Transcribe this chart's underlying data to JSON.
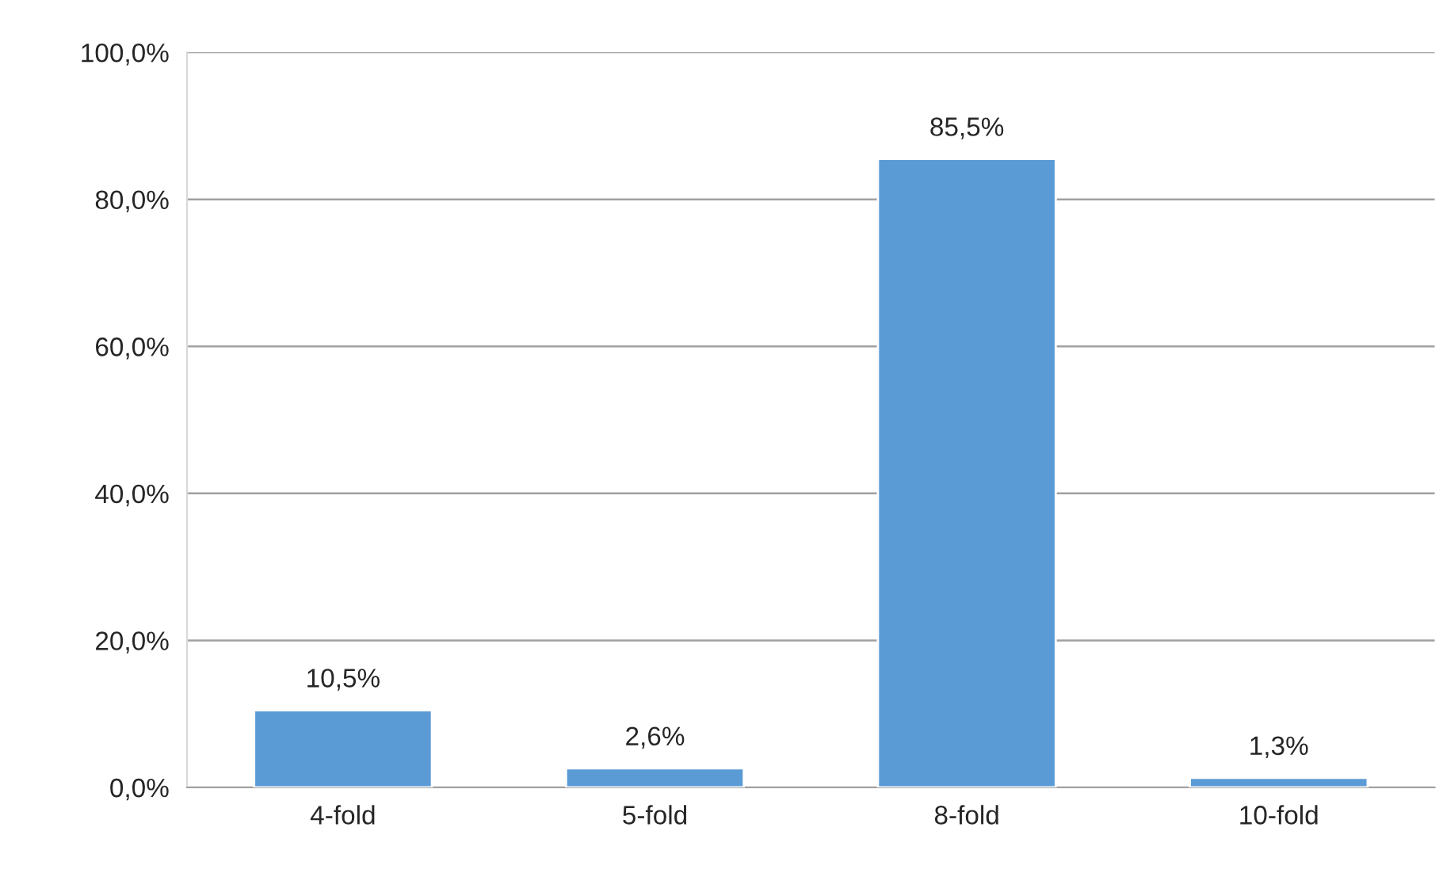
{
  "chart_data": {
    "type": "bar",
    "categories": [
      "4-fold",
      "5-fold",
      "8-fold",
      "10-fold"
    ],
    "values": [
      10.5,
      2.6,
      85.5,
      1.3
    ],
    "value_labels": [
      "10,5%",
      "2,6%",
      "85,5%",
      "1,3%"
    ],
    "color": "#5b9bd5",
    "ylim": [
      0,
      100
    ],
    "yticks": [
      {
        "value": 0,
        "label": "0,0%"
      },
      {
        "value": 20,
        "label": "20,0%"
      },
      {
        "value": 40,
        "label": "40,0%"
      },
      {
        "value": 60,
        "label": "60,0%"
      },
      {
        "value": 80,
        "label": "80,0%"
      },
      {
        "value": 100,
        "label": "100,0%"
      }
    ],
    "grid": "y"
  }
}
